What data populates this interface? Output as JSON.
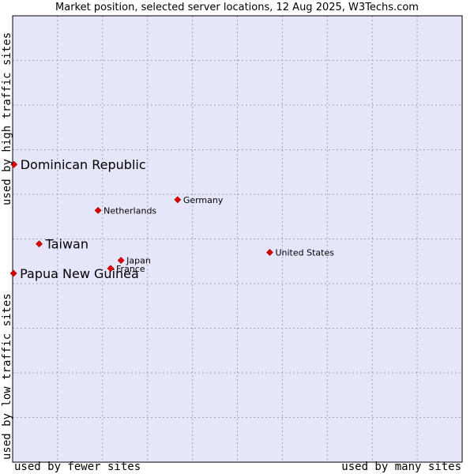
{
  "chart_data": {
    "type": "scatter",
    "title": "Market position, selected server locations, 12 Aug 2025, W3Techs.com",
    "xlabel_left": "used by fewer sites",
    "xlabel_right": "used by many sites",
    "ylabel_top": "used by high traffic sites",
    "ylabel_bottom": "used by low traffic sites",
    "grid": true,
    "xlim": [
      0,
      100
    ],
    "ylim": [
      0,
      100
    ],
    "colors": {
      "background": "#e6e6fa",
      "grid": "#a0a0b8",
      "marker": "#e00000",
      "border": "#000000"
    },
    "points": [
      {
        "label": "Dominican Republic",
        "x": 0.3,
        "y": 66.7,
        "emphasis": true
      },
      {
        "label": "Taiwan",
        "x": 5.9,
        "y": 48.9,
        "emphasis": true
      },
      {
        "label": "Papua New Guinea",
        "x": 0.2,
        "y": 42.3,
        "emphasis": true
      },
      {
        "label": "Germany",
        "x": 36.7,
        "y": 58.8,
        "emphasis": false
      },
      {
        "label": "Netherlands",
        "x": 19.0,
        "y": 56.4,
        "emphasis": false
      },
      {
        "label": "United States",
        "x": 57.2,
        "y": 47.0,
        "emphasis": false
      },
      {
        "label": "Japan",
        "x": 24.1,
        "y": 45.2,
        "emphasis": false
      },
      {
        "label": "France",
        "x": 21.8,
        "y": 43.4,
        "emphasis": false
      }
    ]
  }
}
